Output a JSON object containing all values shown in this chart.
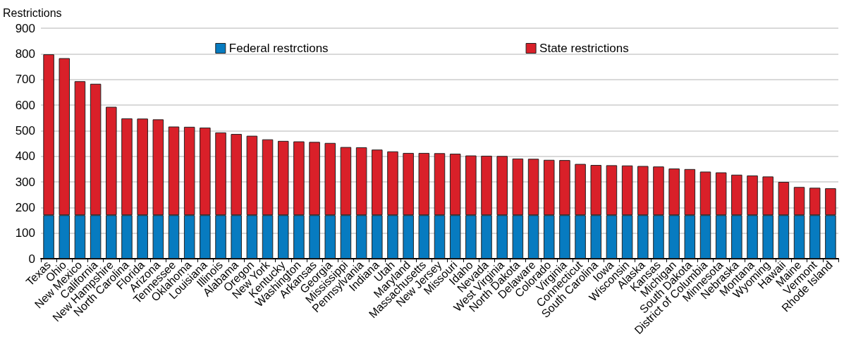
{
  "chart_data": {
    "type": "bar",
    "stacked": true,
    "ylabel": "Restrictions",
    "categories": [
      "Texas",
      "Ohio",
      "New Mexico",
      "California",
      "New Hampshire",
      "North Carolina",
      "Florida",
      "Arizona",
      "Tennessee",
      "Oklahoma",
      "Louisiana",
      "Illinois",
      "Alabama",
      "Oregon",
      "New York",
      "Kentucky",
      "Washington",
      "Arkansas",
      "Georgia",
      "Mississippi",
      "Pennsylvania",
      "Indiana",
      "Utah",
      "Maryland",
      "Massachusetts",
      "New Jersey",
      "Missouri",
      "Idaho",
      "Nevada",
      "West Virginia",
      "North Dakota",
      "Delaware",
      "Colorado",
      "Virginia",
      "Connecticut",
      "South Carolina",
      "Iowa",
      "Wisconsin",
      "Alaska",
      "Kansas",
      "Michigan",
      "South Dakota",
      "District of Columbia",
      "Minnesota",
      "Nebraska",
      "Montana",
      "Wyoming",
      "Hawaii",
      "Maine",
      "Vermont",
      "Rhode Island"
    ],
    "series": [
      {
        "name": "Federal restrctions",
        "color": "#077bc0",
        "values": [
          170,
          170,
          170,
          170,
          170,
          170,
          170,
          170,
          170,
          170,
          170,
          170,
          170,
          170,
          170,
          170,
          170,
          170,
          170,
          170,
          170,
          170,
          170,
          170,
          170,
          170,
          170,
          170,
          170,
          170,
          170,
          170,
          170,
          170,
          170,
          170,
          170,
          170,
          170,
          170,
          170,
          170,
          170,
          170,
          170,
          170,
          170,
          170,
          170,
          170,
          170
        ]
      },
      {
        "name": "State restrictions",
        "color": "#d92029",
        "values": [
          628,
          613,
          523,
          513,
          423,
          378,
          377,
          374,
          346,
          345,
          342,
          323,
          317,
          310,
          296,
          290,
          288,
          286,
          282,
          266,
          265,
          256,
          249,
          243,
          243,
          242,
          240,
          233,
          232,
          231,
          221,
          220,
          216,
          215,
          200,
          196,
          195,
          194,
          192,
          190,
          182,
          180,
          170,
          167,
          158,
          155,
          151,
          130,
          110,
          107,
          105
        ]
      }
    ],
    "ylim": [
      0,
      900
    ],
    "yticks": [
      0,
      100,
      200,
      300,
      400,
      500,
      600,
      700,
      800,
      900
    ],
    "grid": "y",
    "legend": "top"
  }
}
